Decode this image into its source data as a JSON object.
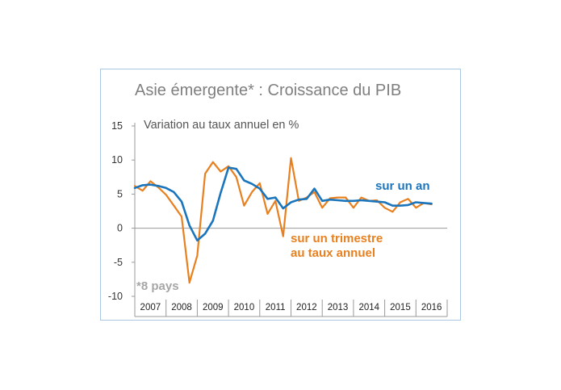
{
  "chart_data": {
    "type": "line",
    "title": "Asie émergente* : Croissance du PIB",
    "subtitle": "Variation au taux annuel en %",
    "note": "*8 pays",
    "xlabel": "",
    "ylabel": "",
    "ylim": [
      -10,
      15
    ],
    "yticks": [
      "15",
      "10",
      "5",
      "0",
      "-5",
      "-10"
    ],
    "xlim": [
      2007.0,
      2017.0
    ],
    "year_labels": [
      "2007",
      "2008",
      "2009",
      "2010",
      "2011",
      "2012",
      "2013",
      "2014",
      "2015",
      "2016"
    ],
    "grid": false,
    "colors": {
      "blue": "#1b75bc",
      "orange": "#e8801f",
      "axis": "#999999",
      "frame": "#a9c7e3"
    },
    "series": [
      {
        "name": "sur un an",
        "color": "#1b75bc",
        "x": [
          2007.0,
          2007.25,
          2007.5,
          2007.75,
          2008.0,
          2008.25,
          2008.5,
          2008.75,
          2009.0,
          2009.25,
          2009.5,
          2009.75,
          2010.0,
          2010.25,
          2010.5,
          2010.75,
          2011.0,
          2011.25,
          2011.5,
          2011.75,
          2012.0,
          2012.25,
          2012.5,
          2012.75,
          2013.0,
          2013.25,
          2013.5,
          2013.75,
          2014.0,
          2014.25,
          2014.5,
          2014.75,
          2015.0,
          2015.25,
          2015.5,
          2015.75,
          2016.0,
          2016.25,
          2016.5
        ],
        "values": [
          5.9,
          6.3,
          6.4,
          6.2,
          5.9,
          5.3,
          3.9,
          0.4,
          -1.8,
          -0.8,
          1.1,
          5.2,
          8.9,
          8.7,
          7.0,
          6.5,
          5.8,
          4.3,
          4.5,
          2.9,
          3.8,
          4.2,
          4.3,
          5.8,
          4.0,
          4.2,
          4.1,
          4.0,
          4.0,
          4.1,
          4.0,
          3.9,
          3.8,
          3.3,
          3.3,
          3.4,
          3.8,
          3.7,
          3.6
        ]
      },
      {
        "name": "sur un trimestre au taux annuel",
        "color": "#e8801f",
        "x": [
          2007.0,
          2007.25,
          2007.5,
          2007.75,
          2008.0,
          2008.25,
          2008.5,
          2008.75,
          2009.0,
          2009.25,
          2009.5,
          2009.75,
          2010.0,
          2010.25,
          2010.5,
          2010.75,
          2011.0,
          2011.25,
          2011.5,
          2011.75,
          2012.0,
          2012.25,
          2012.5,
          2012.75,
          2013.0,
          2013.25,
          2013.5,
          2013.75,
          2014.0,
          2014.25,
          2014.5,
          2014.75,
          2015.0,
          2015.25,
          2015.5,
          2015.75,
          2016.0,
          2016.25,
          2016.5
        ],
        "values": [
          6.2,
          5.5,
          6.9,
          6.0,
          4.9,
          3.3,
          1.7,
          -8.0,
          -4.0,
          8.0,
          9.7,
          8.3,
          9.1,
          7.5,
          3.3,
          5.3,
          6.6,
          2.1,
          4.0,
          -1.2,
          10.3,
          4.0,
          4.5,
          5.3,
          3.0,
          4.4,
          4.5,
          4.5,
          3.0,
          4.5,
          4.0,
          4.1,
          3.0,
          2.4,
          3.8,
          4.3,
          3.0,
          3.7,
          3.5
        ]
      }
    ],
    "annotations": {
      "blue_label": "sur un an",
      "orange_label_line1": "sur un trimestre",
      "orange_label_line2": "au taux annuel"
    }
  }
}
